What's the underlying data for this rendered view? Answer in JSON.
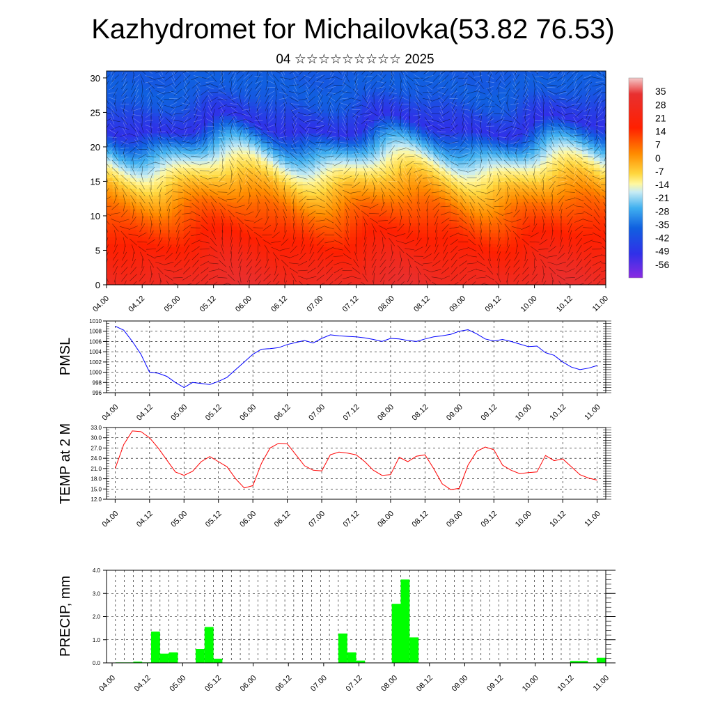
{
  "title": "Kazhydromet for Michailovka(53.82 76.53)",
  "subtitle": "04 ☆☆☆☆☆☆☆☆☆ 2025",
  "time_ticks": [
    "04.00",
    "04.12",
    "05.00",
    "05.12",
    "06.00",
    "06.12",
    "07.00",
    "07.12",
    "08.00",
    "08.12",
    "09.00",
    "09.12",
    "10.00",
    "10.12",
    "11.00"
  ],
  "chart_data": [
    {
      "type": "heatmap",
      "description_of_z": "temperature by level",
      "y_ticks": [
        0,
        5,
        10,
        15,
        20,
        25,
        30
      ],
      "ylim": [
        0,
        31
      ],
      "xlim": [
        0,
        168
      ],
      "colorbar": {
        "labels": [
          "35",
          "28",
          "21",
          "14",
          "7",
          "0",
          "-7",
          "-14",
          "-21",
          "-28",
          "-35",
          "-42",
          "-49",
          "-56"
        ],
        "values": [
          35,
          28,
          21,
          14,
          7,
          0,
          -7,
          -14,
          -21,
          -28,
          -35,
          -42,
          -49,
          -56
        ],
        "range": [
          -63,
          42
        ]
      },
      "level_profile_y": [
        0,
        2,
        5,
        8,
        11,
        13,
        15,
        16.5,
        18,
        20,
        22,
        23,
        25,
        27,
        29,
        31
      ],
      "level_profile_value": [
        30,
        28,
        24,
        20,
        14,
        8,
        2,
        -6,
        -18,
        -30,
        -44,
        -52,
        -48,
        -42,
        -40,
        -42
      ]
    },
    {
      "type": "line",
      "ylabel": "PMSL",
      "yticks": [
        996,
        998,
        1000,
        1002,
        1004,
        1006,
        1008,
        1010
      ],
      "ylim": [
        996,
        1010
      ],
      "xlim": [
        -3,
        171
      ],
      "color": "#0000ff",
      "x": [
        0,
        3,
        6,
        9,
        12,
        15,
        18,
        21,
        24,
        27,
        30,
        33,
        36,
        39,
        42,
        45,
        48,
        51,
        54,
        57,
        60,
        63,
        66,
        69,
        72,
        75,
        78,
        81,
        84,
        87,
        90,
        93,
        96,
        99,
        102,
        105,
        108,
        111,
        114,
        117,
        120,
        123,
        126,
        129,
        132,
        135,
        138,
        141,
        144,
        147,
        150,
        153,
        156,
        159,
        162,
        165,
        168
      ],
      "y": [
        1009.0,
        1008.2,
        1006.0,
        1003.5,
        1000.0,
        999.8,
        999.2,
        998.0,
        997.0,
        998.0,
        997.8,
        997.6,
        998.2,
        999.0,
        1000.5,
        1002.0,
        1003.5,
        1004.5,
        1004.6,
        1004.8,
        1005.4,
        1005.8,
        1006.2,
        1005.7,
        1006.6,
        1007.3,
        1007.1,
        1007.0,
        1006.9,
        1006.7,
        1006.4,
        1006.0,
        1006.6,
        1006.5,
        1006.2,
        1006.0,
        1006.5,
        1006.9,
        1007.1,
        1007.4,
        1008.0,
        1008.3,
        1007.5,
        1006.5,
        1006.1,
        1006.4,
        1006.0,
        1005.5,
        1005.0,
        1005.1,
        1003.8,
        1003.3,
        1002.0,
        1001.0,
        1000.5,
        1000.8,
        1001.3
      ]
    },
    {
      "type": "line",
      "ylabel": "TEMP at 2 M",
      "yticks": [
        "12.0",
        "15.0",
        "18.0",
        "21.0",
        "24.0",
        "27.0",
        "30.0",
        "33.0"
      ],
      "ylim": [
        12,
        33
      ],
      "xlim": [
        -3,
        171
      ],
      "color": "#ff0000",
      "x": [
        0,
        3,
        6,
        9,
        12,
        15,
        18,
        21,
        24,
        27,
        30,
        33,
        36,
        39,
        42,
        45,
        48,
        51,
        54,
        57,
        60,
        63,
        66,
        69,
        72,
        75,
        78,
        81,
        84,
        87,
        90,
        93,
        96,
        99,
        102,
        105,
        108,
        111,
        114,
        117,
        120,
        123,
        126,
        129,
        132,
        135,
        138,
        141,
        144,
        147,
        150,
        153,
        156,
        159,
        162,
        165,
        168
      ],
      "y": [
        21.0,
        28.0,
        32.0,
        31.8,
        30.0,
        27.0,
        23.5,
        20.0,
        19.0,
        20.2,
        23.0,
        24.5,
        23.0,
        21.5,
        18.0,
        15.3,
        16.0,
        22.5,
        27.0,
        28.4,
        28.2,
        25.0,
        21.8,
        20.5,
        20.3,
        25.0,
        25.8,
        25.5,
        25.0,
        23.0,
        20.5,
        19.0,
        19.2,
        24.3,
        23.0,
        24.6,
        25.0,
        21.0,
        16.5,
        14.8,
        15.2,
        22.0,
        26.0,
        27.3,
        26.5,
        22.0,
        20.5,
        19.5,
        19.8,
        20.0,
        24.8,
        23.3,
        23.8,
        21.5,
        19.2,
        18.2,
        17.6
      ]
    },
    {
      "type": "bar",
      "ylabel": "PRECIP, mm",
      "yticks": [
        "0.0",
        "1.0",
        "2.0",
        "3.0",
        "4.0"
      ],
      "ylim": [
        0,
        4
      ],
      "xlim": [
        0,
        168
      ],
      "color": "#00ff00",
      "bar_width": 3,
      "x": [
        6,
        9,
        12,
        15,
        18,
        21,
        24,
        27,
        30,
        33,
        36,
        39,
        42,
        45,
        48,
        51,
        54,
        57,
        60,
        63,
        66,
        69,
        72,
        75,
        78,
        81,
        84,
        87,
        90,
        93,
        96,
        99,
        102,
        105,
        108,
        111,
        114,
        117,
        120,
        123,
        126,
        129,
        132,
        135,
        138,
        141,
        144,
        147,
        150,
        153,
        156,
        159,
        162,
        165,
        168
      ],
      "values": [
        0.02,
        0.02,
        0.05,
        0.02,
        1.35,
        0.4,
        0.45,
        0.0,
        0.0,
        0.6,
        1.55,
        0.18,
        0.0,
        0.0,
        0.0,
        0.0,
        0.0,
        0.0,
        0.0,
        0.0,
        0.0,
        0.0,
        0.0,
        0.0,
        0.0,
        1.27,
        0.45,
        0.1,
        0.0,
        0.0,
        0.0,
        2.55,
        3.6,
        1.1,
        0.0,
        0.0,
        0.0,
        0.0,
        0.0,
        0.0,
        0.0,
        0.0,
        0.0,
        0.0,
        0.0,
        0.0,
        0.0,
        0.0,
        0.0,
        0.0,
        0.0,
        0.08,
        0.08,
        0.02,
        0.22
      ]
    }
  ]
}
